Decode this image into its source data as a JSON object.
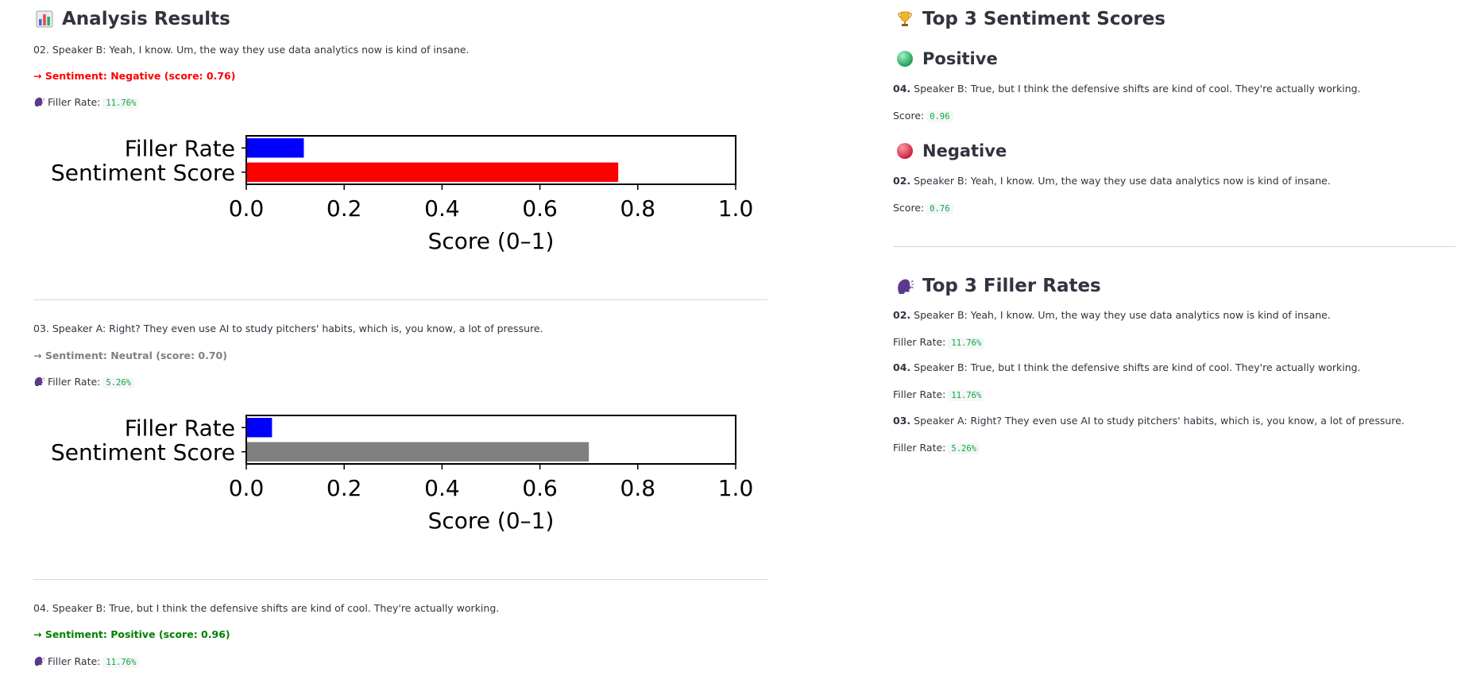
{
  "left": {
    "title": "Analysis Results",
    "title_icon": "bar-chart-icon",
    "entries": [
      {
        "text": "02. Speaker B: Yeah, I know. Um, the way they use data analytics now is kind of insane.",
        "sentiment_text": "→ Sentiment: Negative (score: 0.76)",
        "sentiment_color": "#ff0000",
        "filler_label": "Filler Rate:",
        "filler_value": "11.76%"
      },
      {
        "text": "03. Speaker A: Right? They even use AI to study pitchers' habits, which is, you know, a lot of pressure.",
        "sentiment_text": "→ Sentiment: Neutral (score: 0.70)",
        "sentiment_color": "#808080",
        "filler_label": "Filler Rate:",
        "filler_value": "5.26%"
      },
      {
        "text": "04. Speaker B: True, but I think the defensive shifts are kind of cool. They're actually working.",
        "sentiment_text": "→ Sentiment: Positive (score: 0.96)",
        "sentiment_color": "#008000",
        "filler_label": "Filler Rate:",
        "filler_value": "11.76%"
      }
    ]
  },
  "right": {
    "title": "Top 3 Sentiment Scores",
    "title_icon": "trophy-icon",
    "positive": {
      "heading": "Positive",
      "icon": "green-circle-icon",
      "num": "04.",
      "text": "Speaker B: True, but I think the defensive shifts are kind of cool. They're actually working.",
      "score_label": "Score:",
      "score_value": "0.96"
    },
    "negative": {
      "heading": "Negative",
      "icon": "red-circle-icon",
      "num": "02.",
      "text": "Speaker B: Yeah, I know. Um, the way they use data analytics now is kind of insane.",
      "score_label": "Score:",
      "score_value": "0.76"
    },
    "filler_title": "Top 3 Filler Rates",
    "filler_icon": "speaking-head-icon",
    "fillers": [
      {
        "num": "02.",
        "text": "Speaker B: Yeah, I know. Um, the way they use data analytics now is kind of insane.",
        "label": "Filler Rate:",
        "value": "11.76%"
      },
      {
        "num": "04.",
        "text": "Speaker B: True, but I think the defensive shifts are kind of cool. They're actually working.",
        "label": "Filler Rate:",
        "value": "11.76%"
      },
      {
        "num": "03.",
        "text": "Speaker A: Right? They even use AI to study pitchers' habits, which is, you know, a lot of pressure.",
        "label": "Filler Rate:",
        "value": "5.26%"
      }
    ]
  },
  "chart_data": [
    {
      "type": "bar",
      "orientation": "horizontal",
      "categories": [
        "Filler Rate",
        "Sentiment Score"
      ],
      "values": [
        0.1176,
        0.76
      ],
      "colors": [
        "#0000ff",
        "#ff0000"
      ],
      "xlabel": "Score (0–1)",
      "xlim": [
        0,
        1
      ],
      "xticks": [
        "0.0",
        "0.2",
        "0.4",
        "0.6",
        "0.8",
        "1.0"
      ],
      "grid": false
    },
    {
      "type": "bar",
      "orientation": "horizontal",
      "categories": [
        "Filler Rate",
        "Sentiment Score"
      ],
      "values": [
        0.0526,
        0.7
      ],
      "colors": [
        "#0000ff",
        "#808080"
      ],
      "xlabel": "Score (0–1)",
      "xlim": [
        0,
        1
      ],
      "xticks": [
        "0.0",
        "0.2",
        "0.4",
        "0.6",
        "0.8",
        "1.0"
      ],
      "grid": false
    }
  ]
}
